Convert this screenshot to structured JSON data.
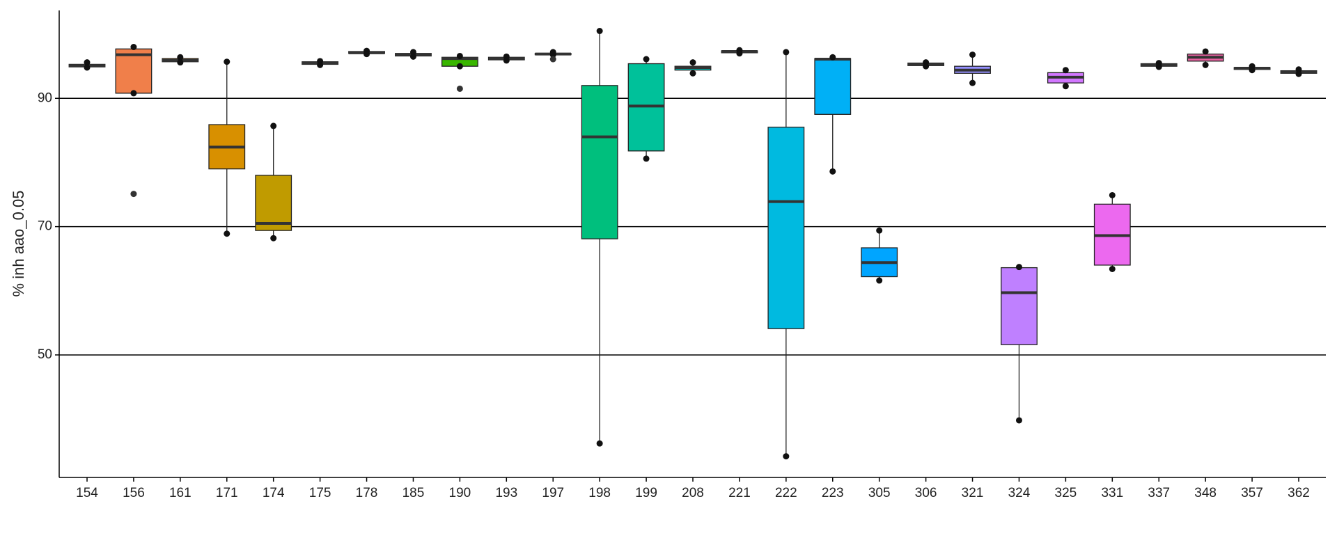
{
  "chart_data": {
    "type": "box",
    "y_label": "% inh aao_0.05",
    "categories": [
      "154",
      "156",
      "161",
      "171",
      "174",
      "175",
      "178",
      "185",
      "190",
      "193",
      "197",
      "198",
      "199",
      "208",
      "221",
      "222",
      "223",
      "305",
      "306",
      "321",
      "324",
      "325",
      "331",
      "337",
      "348",
      "357",
      "362"
    ],
    "boxes": [
      {
        "min": 94.8,
        "q1": 94.9,
        "median": 95.1,
        "q3": 95.3,
        "max": 95.6,
        "outliers": [],
        "color": "#F8766D"
      },
      {
        "min": 90.8,
        "q1": 90.8,
        "median": 96.8,
        "q3": 97.7,
        "max": 98.0,
        "outliers": [
          75.1
        ],
        "color": "#F07F4A"
      },
      {
        "min": 95.6,
        "q1": 95.7,
        "median": 95.9,
        "q3": 96.2,
        "max": 96.4,
        "outliers": [],
        "color": "#E58700"
      },
      {
        "min": 68.9,
        "q1": 79.0,
        "median": 82.4,
        "q3": 85.9,
        "max": 95.7,
        "outliers": [],
        "color": "#D89000"
      },
      {
        "min": 68.2,
        "q1": 69.4,
        "median": 70.5,
        "q3": 78.0,
        "max": 85.7,
        "outliers": [],
        "color": "#C09B00"
      },
      {
        "min": 95.2,
        "q1": 95.3,
        "median": 95.5,
        "q3": 95.7,
        "max": 95.8,
        "outliers": [],
        "color": "#AFA100"
      },
      {
        "min": 96.9,
        "q1": 97.0,
        "median": 97.1,
        "q3": 97.3,
        "max": 97.4,
        "outliers": [],
        "color": "#96A900"
      },
      {
        "min": 96.5,
        "q1": 96.6,
        "median": 96.8,
        "q3": 97.0,
        "max": 97.2,
        "outliers": [],
        "color": "#72B000"
      },
      {
        "min": 95.0,
        "q1": 95.0,
        "median": 96.2,
        "q3": 96.4,
        "max": 96.6,
        "outliers": [
          91.5
        ],
        "color": "#39B600"
      },
      {
        "min": 95.9,
        "q1": 96.0,
        "median": 96.2,
        "q3": 96.4,
        "max": 96.5,
        "outliers": [],
        "color": "#00BA38"
      },
      {
        "min": 96.8,
        "q1": 96.8,
        "median": 96.9,
        "q3": 97.0,
        "max": 97.2,
        "outliers": [
          96.1
        ],
        "color": "#00BD5C"
      },
      {
        "min": 36.2,
        "q1": 68.1,
        "median": 84.0,
        "q3": 92.0,
        "max": 100.5,
        "outliers": [],
        "color": "#00BF7D"
      },
      {
        "min": 80.6,
        "q1": 81.8,
        "median": 88.8,
        "q3": 95.4,
        "max": 96.1,
        "outliers": [],
        "color": "#00C19A"
      },
      {
        "min": 93.9,
        "q1": 94.4,
        "median": 94.8,
        "q3": 95.0,
        "max": 95.6,
        "outliers": [],
        "color": "#00C0B8"
      },
      {
        "min": 97.0,
        "q1": 97.1,
        "median": 97.3,
        "q3": 97.4,
        "max": 97.5,
        "outliers": [],
        "color": "#00BCD4"
      },
      {
        "min": 34.2,
        "q1": 54.1,
        "median": 73.9,
        "q3": 85.5,
        "max": 97.2,
        "outliers": [],
        "color": "#00BAE0"
      },
      {
        "min": 78.6,
        "q1": 87.5,
        "median": 96.1,
        "q3": 96.2,
        "max": 96.4,
        "outliers": [],
        "color": "#00B0F6"
      },
      {
        "min": 61.6,
        "q1": 62.2,
        "median": 64.4,
        "q3": 66.7,
        "max": 69.4,
        "outliers": [],
        "color": "#00A5FF"
      },
      {
        "min": 95.0,
        "q1": 95.1,
        "median": 95.3,
        "q3": 95.5,
        "max": 95.6,
        "outliers": [],
        "color": "#7997FF"
      },
      {
        "min": 92.4,
        "q1": 93.9,
        "median": 94.4,
        "q3": 95.0,
        "max": 96.8,
        "outliers": [],
        "color": "#9590FF"
      },
      {
        "min": 39.8,
        "q1": 51.6,
        "median": 59.7,
        "q3": 63.6,
        "max": 63.7,
        "outliers": [],
        "color": "#BF80FF"
      },
      {
        "min": 91.9,
        "q1": 92.4,
        "median": 93.3,
        "q3": 94.0,
        "max": 94.4,
        "outliers": [],
        "color": "#D277FF"
      },
      {
        "min": 63.4,
        "q1": 64.0,
        "median": 68.6,
        "q3": 73.5,
        "max": 74.9,
        "outliers": [],
        "color": "#EC69EF"
      },
      {
        "min": 94.9,
        "q1": 95.0,
        "median": 95.2,
        "q3": 95.4,
        "max": 95.5,
        "outliers": [],
        "color": "#F564E3"
      },
      {
        "min": 95.2,
        "q1": 95.8,
        "median": 96.4,
        "q3": 96.9,
        "max": 97.3,
        "outliers": [],
        "color": "#E7609F"
      },
      {
        "min": 94.4,
        "q1": 94.5,
        "median": 94.7,
        "q3": 94.8,
        "max": 95.0,
        "outliers": [],
        "color": "#FF62BC"
      },
      {
        "min": 93.8,
        "q1": 93.9,
        "median": 94.1,
        "q3": 94.3,
        "max": 94.5,
        "outliers": [],
        "color": "#FF6C91"
      }
    ],
    "ylim": [
      30.9,
      103.7
    ],
    "yticks": [
      50,
      70,
      90
    ],
    "grid": true
  }
}
